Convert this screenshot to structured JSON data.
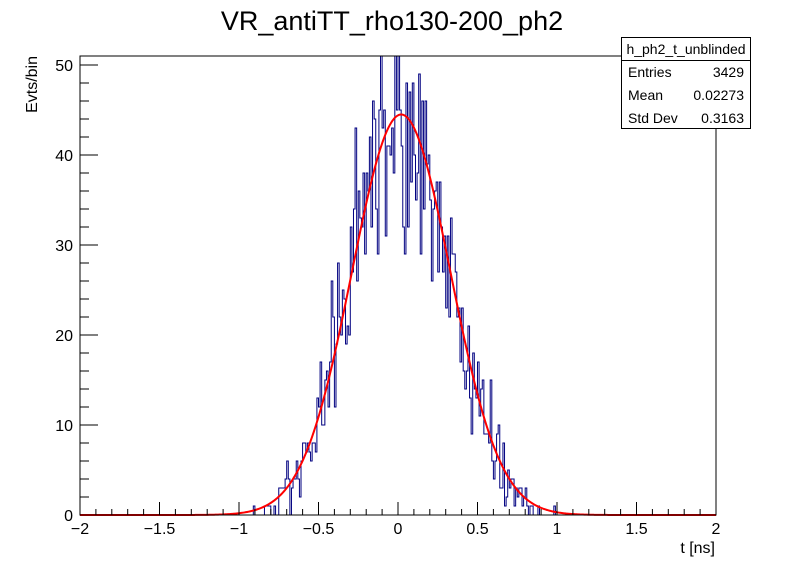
{
  "chart_data": {
    "type": "histogram",
    "title": "VR_antiTT_rho130-200_ph2",
    "xlabel": "t [ns]",
    "ylabel": "Evts/bin",
    "xlim": [
      -2,
      2
    ],
    "ylim": [
      0,
      51
    ],
    "bin_width": 0.01,
    "xticks": [
      {
        "value": -2,
        "label": "−2"
      },
      {
        "value": -1.5,
        "label": "−1.5"
      },
      {
        "value": -1,
        "label": "−1"
      },
      {
        "value": -0.5,
        "label": "−0.5"
      },
      {
        "value": 0,
        "label": "0"
      },
      {
        "value": 0.5,
        "label": "0.5"
      },
      {
        "value": 1,
        "label": "1"
      },
      {
        "value": 1.5,
        "label": "1.5"
      },
      {
        "value": 2,
        "label": "2"
      }
    ],
    "yticks": [
      {
        "value": 0,
        "label": "0"
      },
      {
        "value": 10,
        "label": "10"
      },
      {
        "value": 20,
        "label": "20"
      },
      {
        "value": 30,
        "label": "30"
      },
      {
        "value": 40,
        "label": "40"
      },
      {
        "value": 50,
        "label": "50"
      }
    ],
    "histogram_color": "#000080",
    "fit": {
      "name": "gaussian",
      "color": "#ff0000",
      "amplitude": 44.5,
      "mean": 0.02,
      "sigma": 0.31
    },
    "histogram_seed": 20240611
  },
  "stats": {
    "title": "h_ph2_t_unblinded",
    "rows": [
      {
        "label": "Entries",
        "value": "3429"
      },
      {
        "label": "Mean",
        "value": "0.02273"
      },
      {
        "label": "Std Dev",
        "value": "0.3163"
      }
    ]
  }
}
